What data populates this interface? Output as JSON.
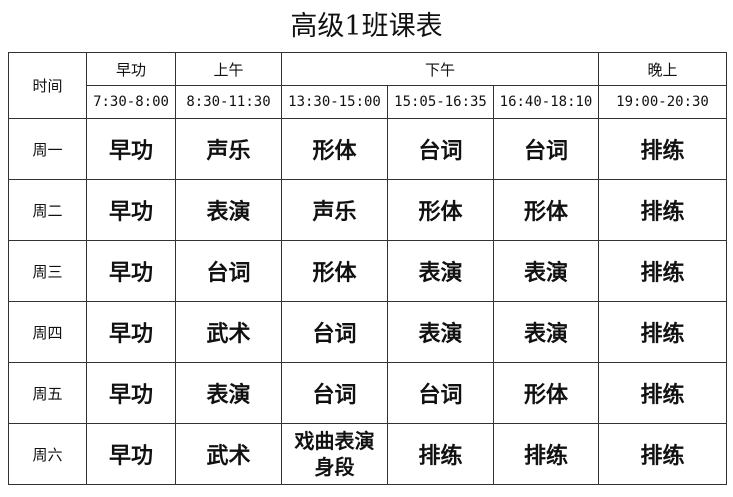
{
  "title": "高级1班课表",
  "header": {
    "time_label": "时间",
    "periods": [
      "早功",
      "上午",
      "下午",
      "晚上"
    ],
    "times": [
      "7:30-8:00",
      "8:30-11:30",
      "13:30-15:00",
      "15:05-16:35",
      "16:40-18:10",
      "19:00-20:30"
    ]
  },
  "rows": [
    {
      "day": "周一",
      "classes": [
        "早功",
        "声乐",
        "形体",
        "台词",
        "台词",
        "排练"
      ]
    },
    {
      "day": "周二",
      "classes": [
        "早功",
        "表演",
        "声乐",
        "形体",
        "形体",
        "排练"
      ]
    },
    {
      "day": "周三",
      "classes": [
        "早功",
        "台词",
        "形体",
        "表演",
        "表演",
        "排练"
      ]
    },
    {
      "day": "周四",
      "classes": [
        "早功",
        "武术",
        "台词",
        "表演",
        "表演",
        "排练"
      ]
    },
    {
      "day": "周五",
      "classes": [
        "早功",
        "表演",
        "台词",
        "台词",
        "形体",
        "排练"
      ]
    },
    {
      "day": "周六",
      "classes": [
        "早功",
        "武术",
        "戏曲表演 身段",
        "排练",
        "排练",
        "排练"
      ]
    }
  ]
}
